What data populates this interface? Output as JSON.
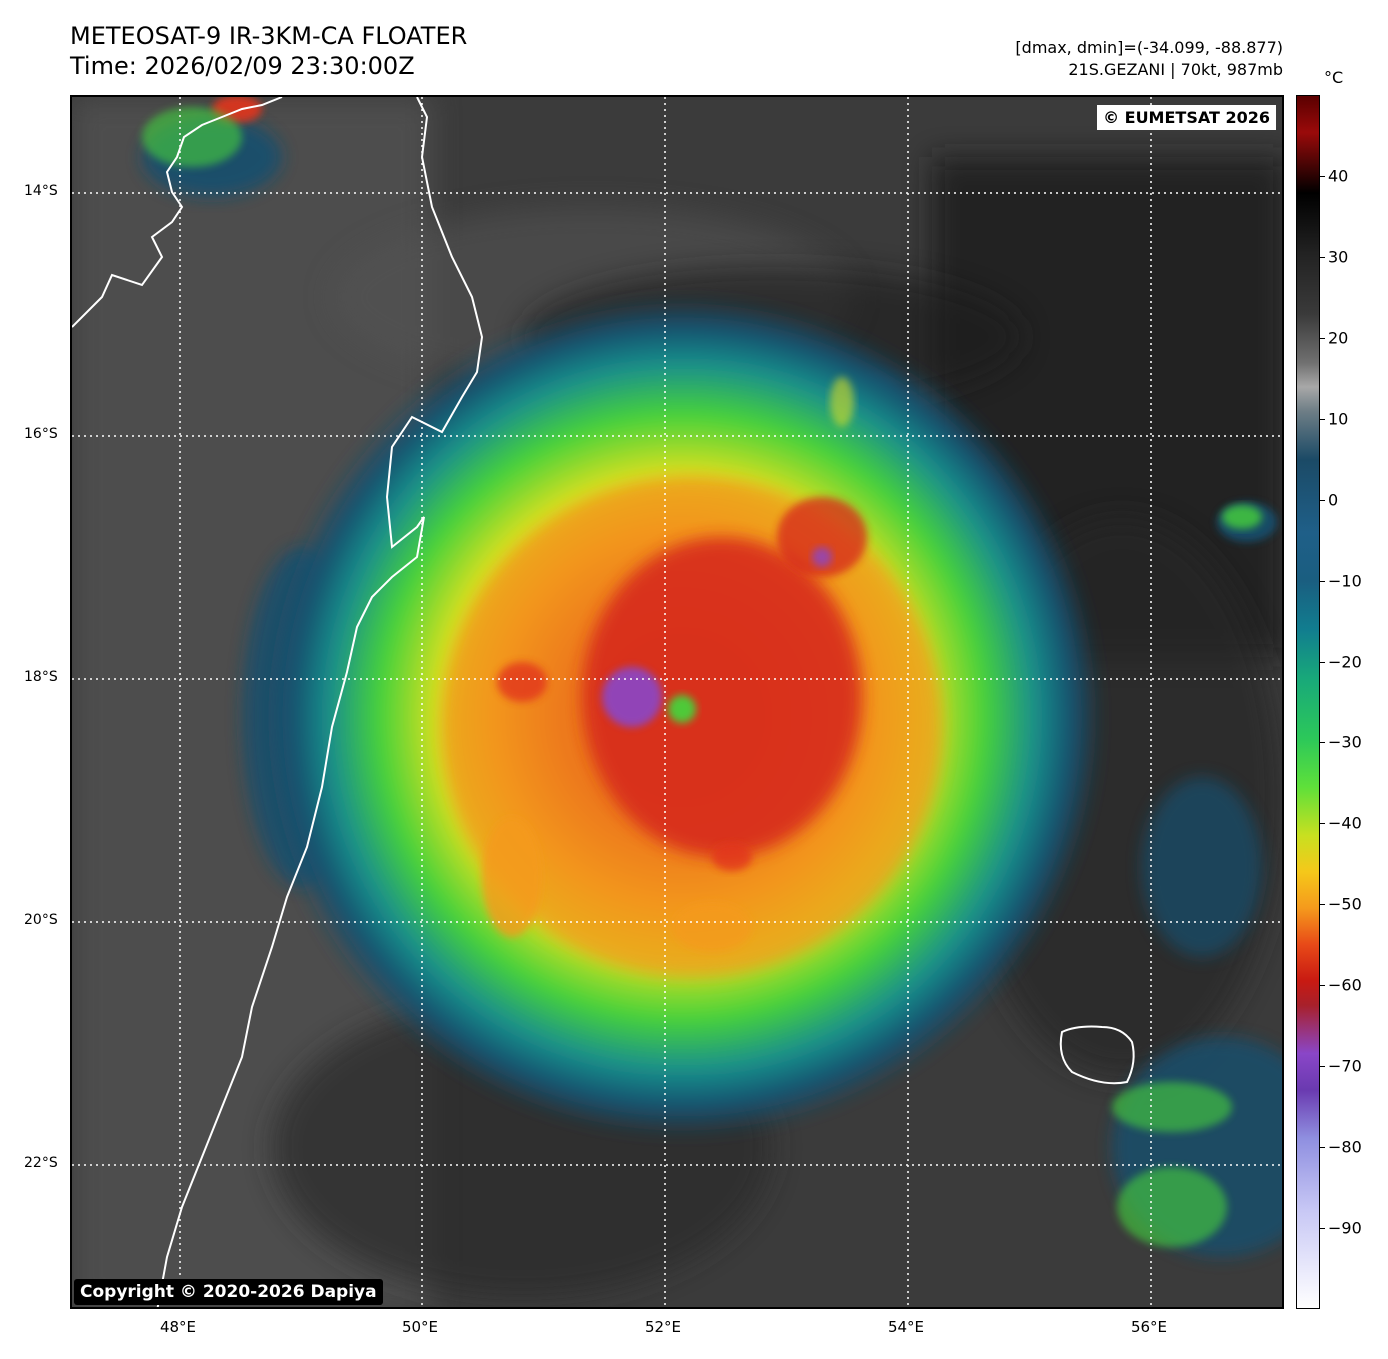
{
  "header": {
    "title": "METEOSAT-9 IR-3KM-CA FLOATER",
    "time": "Time: 2026/02/09 23:30:00Z",
    "range": "[dmax, dmin]=(-34.099, -88.877)",
    "storm": "21S.GEZANI | 70kt, 987mb"
  },
  "map": {
    "copyright": "© EUMETSAT 2026",
    "credit": "Copyright © 2020-2026 Dapiya",
    "lat_labels": [
      "14°S",
      "16°S",
      "18°S",
      "20°S",
      "22°S"
    ],
    "lon_labels": [
      "48°E",
      "50°E",
      "52°E",
      "54°E",
      "56°E"
    ]
  },
  "colorbar": {
    "unit": "°C",
    "ticks": [
      "40",
      "30",
      "20",
      "10",
      "0",
      "−10",
      "−20",
      "−30",
      "−40",
      "−50",
      "−60",
      "−70",
      "−80",
      "−90"
    ],
    "tick_values": [
      40,
      30,
      20,
      10,
      0,
      -10,
      -20,
      -30,
      -40,
      -50,
      -60,
      -70,
      -80,
      -90
    ],
    "vmax": 50,
    "vmin": -100
  },
  "colors": {
    "land_outline": "#ffffff",
    "gridline": "#ffffff",
    "warm_background": "#3a3a3a"
  }
}
